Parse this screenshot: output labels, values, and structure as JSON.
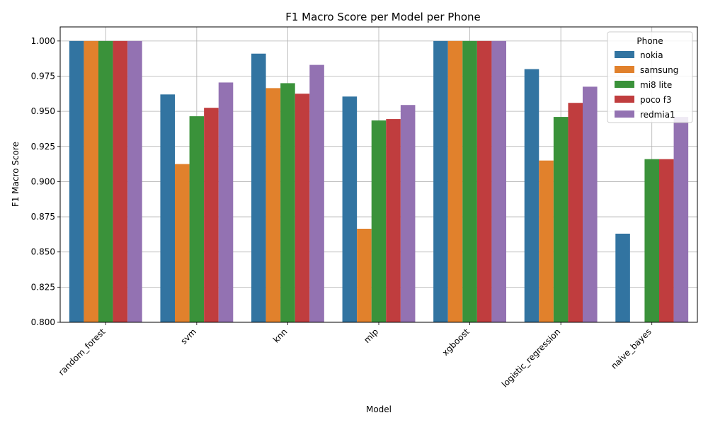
{
  "chart_data": {
    "type": "bar",
    "title": "F1 Macro Score per Model per Phone",
    "xlabel": "Model",
    "ylabel": "F1 Macro Score",
    "ylim": [
      0.8,
      1.01
    ],
    "yticks": [
      "0.800",
      "0.825",
      "0.850",
      "0.875",
      "0.900",
      "0.925",
      "0.950",
      "0.975",
      "1.000"
    ],
    "grid": true,
    "legend": {
      "title": "Phone",
      "placement": "top-right"
    },
    "categories": [
      "random_forest",
      "svm",
      "knn",
      "mlp",
      "xgboost",
      "logistic_regression",
      "naive_bayes"
    ],
    "series": [
      {
        "name": "nokia",
        "color": "#3274a1",
        "values": [
          1.0,
          0.962,
          0.991,
          0.9605,
          1.0,
          0.98,
          0.863
        ]
      },
      {
        "name": "samsung",
        "color": "#e1812c",
        "values": [
          1.0,
          0.9125,
          0.9665,
          0.8665,
          1.0,
          0.915,
          null
        ]
      },
      {
        "name": "mi8 lite",
        "color": "#3a923a",
        "values": [
          1.0,
          0.9465,
          0.97,
          0.9435,
          1.0,
          0.946,
          0.916
        ]
      },
      {
        "name": "poco f3",
        "color": "#c03d3e",
        "values": [
          1.0,
          0.9525,
          0.9625,
          0.9445,
          1.0,
          0.956,
          0.916
        ]
      },
      {
        "name": "redmia1",
        "color": "#9372b2",
        "values": [
          1.0,
          0.9705,
          0.983,
          0.9545,
          1.0,
          0.9675,
          0.946
        ]
      }
    ]
  }
}
